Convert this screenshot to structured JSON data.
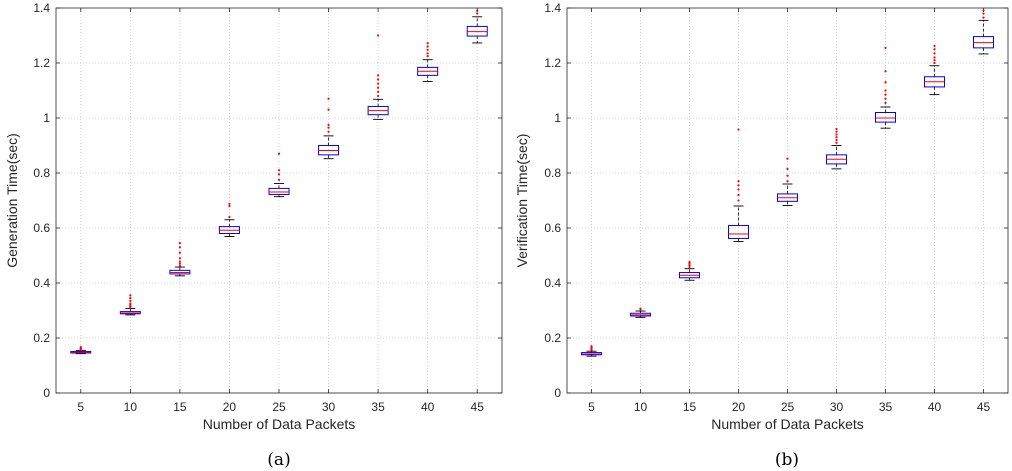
{
  "chart_data": [
    {
      "type": "box",
      "caption": "(a)",
      "xlabel": "Number of Data Packets",
      "ylabel": "Generation Time(sec)",
      "title": "",
      "categories": [
        "5",
        "10",
        "15",
        "20",
        "25",
        "30",
        "35",
        "40",
        "45"
      ],
      "ylim": [
        0,
        1.4
      ],
      "yticks": [
        "0",
        "0.2",
        "0.4",
        "0.6",
        "0.8",
        "1",
        "1.2",
        "1.4"
      ],
      "grid": true,
      "boxes": [
        {
          "min": 0.143,
          "q1": 0.146,
          "median": 0.148,
          "q3": 0.151,
          "max": 0.155,
          "outliers": [
            0.157,
            0.16,
            0.163,
            0.167
          ]
        },
        {
          "min": 0.284,
          "q1": 0.288,
          "median": 0.291,
          "q3": 0.296,
          "max": 0.307,
          "outliers": [
            0.31,
            0.315,
            0.32,
            0.325,
            0.335,
            0.345,
            0.355
          ]
        },
        {
          "min": 0.426,
          "q1": 0.433,
          "median": 0.438,
          "q3": 0.446,
          "max": 0.458,
          "outliers": [
            0.462,
            0.47,
            0.478,
            0.49,
            0.51,
            0.53,
            0.545
          ]
        },
        {
          "min": 0.569,
          "q1": 0.58,
          "median": 0.592,
          "q3": 0.605,
          "max": 0.63,
          "outliers": [
            0.64,
            0.68,
            0.688
          ]
        },
        {
          "min": 0.714,
          "q1": 0.722,
          "median": 0.731,
          "q3": 0.744,
          "max": 0.762,
          "outliers": [
            0.775,
            0.795,
            0.81,
            0.87
          ]
        },
        {
          "min": 0.852,
          "q1": 0.866,
          "median": 0.882,
          "q3": 0.9,
          "max": 0.935,
          "outliers": [
            0.95,
            0.965,
            0.975,
            1.03,
            1.07
          ]
        },
        {
          "min": 0.995,
          "q1": 1.012,
          "median": 1.027,
          "q3": 1.042,
          "max": 1.068,
          "outliers": [
            1.08,
            1.095,
            1.11,
            1.125,
            1.14,
            1.155,
            1.3
          ]
        },
        {
          "min": 1.133,
          "q1": 1.155,
          "median": 1.17,
          "q3": 1.184,
          "max": 1.212,
          "outliers": [
            1.225,
            1.235,
            1.248,
            1.26,
            1.272
          ]
        },
        {
          "min": 1.273,
          "q1": 1.298,
          "median": 1.314,
          "q3": 1.333,
          "max": 1.368,
          "outliers": [
            1.38,
            1.39
          ]
        }
      ]
    },
    {
      "type": "box",
      "caption": "(b)",
      "xlabel": "Number of Data Packets",
      "ylabel": "Verification Time(sec)",
      "title": "",
      "categories": [
        "5",
        "10",
        "15",
        "20",
        "25",
        "30",
        "35",
        "40",
        "45"
      ],
      "ylim": [
        0,
        1.4
      ],
      "yticks": [
        "0",
        "0.2",
        "0.4",
        "0.6",
        "0.8",
        "1",
        "1.2",
        "1.4"
      ],
      "grid": true,
      "boxes": [
        {
          "min": 0.134,
          "q1": 0.139,
          "median": 0.142,
          "q3": 0.147,
          "max": 0.152,
          "outliers": [
            0.156,
            0.16,
            0.165,
            0.17
          ]
        },
        {
          "min": 0.275,
          "q1": 0.28,
          "median": 0.284,
          "q3": 0.29,
          "max": 0.298,
          "outliers": [
            0.302,
            0.307
          ]
        },
        {
          "min": 0.41,
          "q1": 0.419,
          "median": 0.428,
          "q3": 0.438,
          "max": 0.452,
          "outliers": [
            0.458,
            0.464,
            0.47,
            0.476
          ]
        },
        {
          "min": 0.551,
          "q1": 0.562,
          "median": 0.578,
          "q3": 0.609,
          "max": 0.68,
          "outliers": [
            0.7,
            0.72,
            0.74,
            0.755,
            0.77,
            0.958
          ]
        },
        {
          "min": 0.682,
          "q1": 0.697,
          "median": 0.71,
          "q3": 0.724,
          "max": 0.76,
          "outliers": [
            0.77,
            0.79,
            0.815,
            0.852
          ]
        },
        {
          "min": 0.815,
          "q1": 0.833,
          "median": 0.85,
          "q3": 0.866,
          "max": 0.9,
          "outliers": [
            0.91,
            0.92,
            0.93,
            0.94,
            0.95,
            0.96
          ]
        },
        {
          "min": 0.963,
          "q1": 0.985,
          "median": 1.0,
          "q3": 1.02,
          "max": 1.04,
          "outliers": [
            1.055,
            1.07,
            1.085,
            1.1,
            1.13,
            1.17,
            1.255
          ]
        },
        {
          "min": 1.085,
          "q1": 1.113,
          "median": 1.132,
          "q3": 1.15,
          "max": 1.19,
          "outliers": [
            1.2,
            1.21,
            1.22,
            1.235,
            1.25,
            1.262
          ]
        },
        {
          "min": 1.233,
          "q1": 1.255,
          "median": 1.274,
          "q3": 1.296,
          "max": 1.355,
          "outliers": [
            1.365,
            1.38,
            1.392
          ]
        }
      ]
    }
  ],
  "colors": {
    "box": "#0000ff",
    "median": "#ff0000",
    "outlier": "#ff0000",
    "whisker": "#000000",
    "grid": "#c8c8c8",
    "axis": "#262626"
  }
}
